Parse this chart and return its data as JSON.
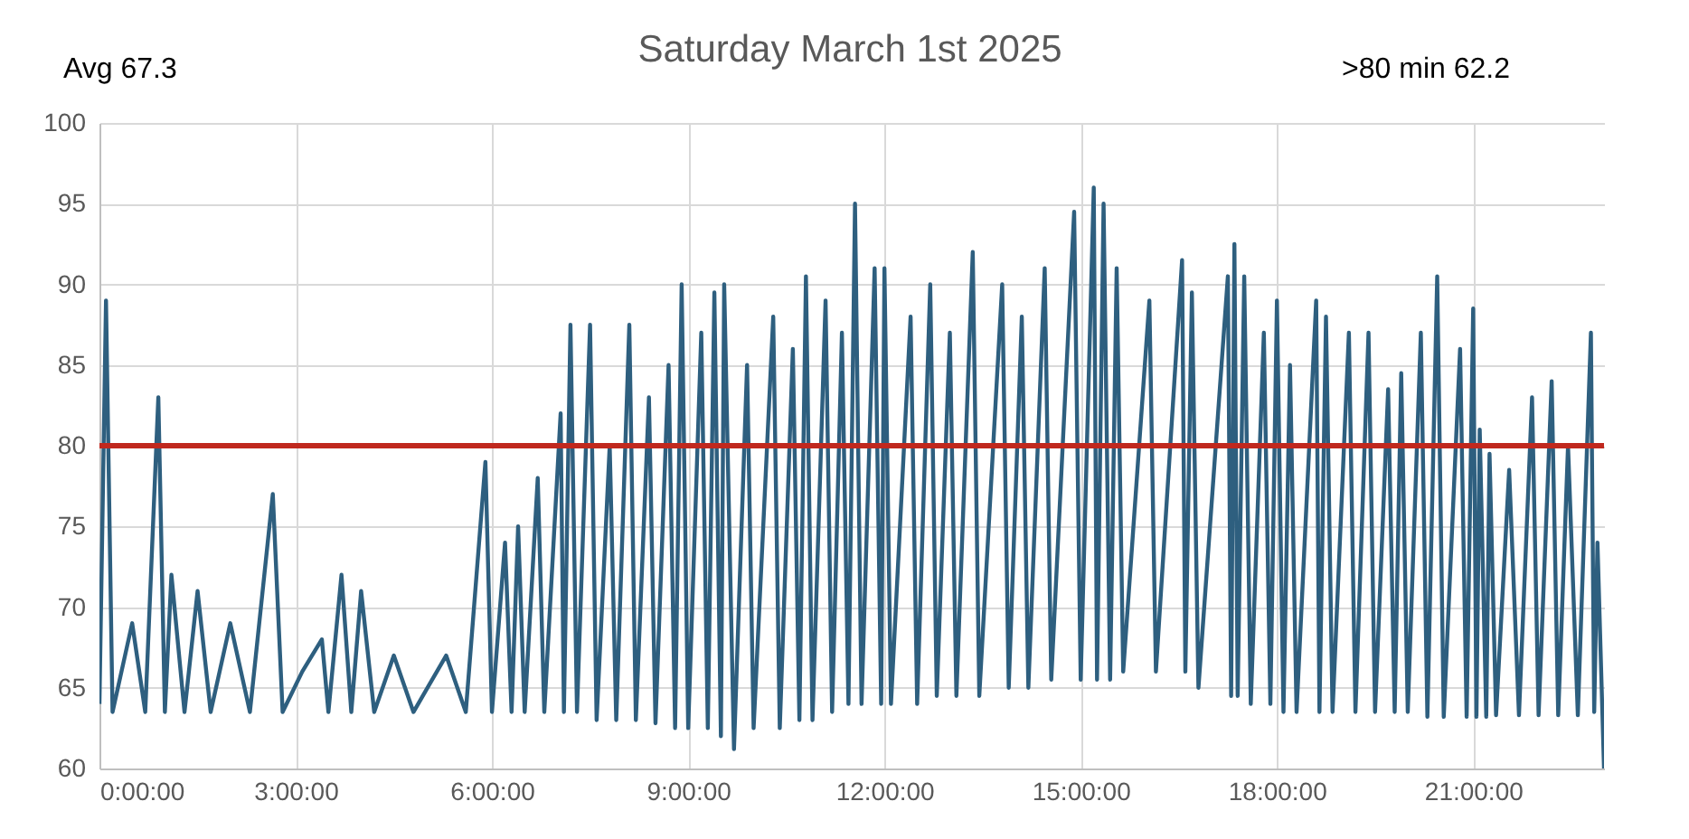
{
  "chart_data": {
    "type": "line",
    "title": "Saturday March 1st 2025",
    "annotations": [
      "Avg  67.3",
      ">80 min 62.2"
    ],
    "x": [
      0,
      0.1,
      0.2,
      0.5,
      0.7,
      0.9,
      1.0,
      1.1,
      1.3,
      1.5,
      1.7,
      2.0,
      2.3,
      2.65,
      2.8,
      3.1,
      3.4,
      3.5,
      3.7,
      3.85,
      4.0,
      4.2,
      4.5,
      4.8,
      5.3,
      5.6,
      5.9,
      6.0,
      6.2,
      6.3,
      6.4,
      6.5,
      6.7,
      6.8,
      7.05,
      7.1,
      7.2,
      7.3,
      7.5,
      7.6,
      7.8,
      7.9,
      8.1,
      8.2,
      8.4,
      8.5,
      8.7,
      8.8,
      8.9,
      9.0,
      9.2,
      9.3,
      9.4,
      9.5,
      9.55,
      9.7,
      9.9,
      10.0,
      10.3,
      10.4,
      10.6,
      10.7,
      10.8,
      10.9,
      11.1,
      11.2,
      11.35,
      11.45,
      11.55,
      11.65,
      11.85,
      11.95,
      12.0,
      12.1,
      12.4,
      12.5,
      12.7,
      12.8,
      13.0,
      13.1,
      13.35,
      13.45,
      13.8,
      13.9,
      14.1,
      14.2,
      14.45,
      14.55,
      14.9,
      15.0,
      15.2,
      15.25,
      15.35,
      15.45,
      15.55,
      15.65,
      16.05,
      16.15,
      16.55,
      16.6,
      16.7,
      16.8,
      17.25,
      17.3,
      17.35,
      17.4,
      17.5,
      17.6,
      17.8,
      17.9,
      18.0,
      18.1,
      18.2,
      18.3,
      18.6,
      18.65,
      18.75,
      18.85,
      19.1,
      19.2,
      19.4,
      19.5,
      19.7,
      19.8,
      19.9,
      20.0,
      20.2,
      20.3,
      20.45,
      20.55,
      20.8,
      20.9,
      21.0,
      21.05,
      21.1,
      21.2,
      21.25,
      21.35,
      21.55,
      21.7,
      21.9,
      22.0,
      22.2,
      22.3,
      22.45,
      22.6,
      22.8,
      22.85,
      22.9,
      23.0
    ],
    "series": [
      {
        "color": "#2e5f7f",
        "values": [
          64,
          89,
          63.5,
          69,
          63.5,
          83,
          63.5,
          72,
          63.5,
          71,
          63.5,
          69,
          63.5,
          77,
          63.5,
          66,
          68,
          63.5,
          72,
          63.5,
          71,
          63.5,
          67,
          63.5,
          67,
          63.5,
          79,
          63.5,
          74,
          63.5,
          75,
          63.5,
          78,
          63.5,
          82,
          63.5,
          87.5,
          63.5,
          87.5,
          63,
          80,
          63,
          87.5,
          63,
          83,
          62.8,
          85,
          62.5,
          90,
          62.5,
          87,
          62.5,
          89.5,
          62,
          90,
          61.2,
          85,
          62.5,
          88,
          62.5,
          86,
          63,
          90.5,
          63,
          89,
          63.5,
          87,
          64,
          95,
          64,
          91,
          64,
          91,
          64,
          88,
          64,
          90,
          64.5,
          87,
          64.5,
          92,
          64.5,
          90,
          65,
          88,
          65,
          91,
          65.5,
          94.5,
          65.5,
          96,
          65.5,
          95,
          65.5,
          91,
          66,
          89,
          66,
          91.5,
          66,
          89.5,
          65,
          90.5,
          64.5,
          92.5,
          64.5,
          90.5,
          64,
          87,
          64,
          89,
          63.5,
          85,
          63.5,
          89,
          63.5,
          88,
          63.5,
          87,
          63.5,
          87,
          63.5,
          83.5,
          63.5,
          84.5,
          63.5,
          87,
          63.2,
          90.5,
          63.2,
          86,
          63.2,
          88.5,
          63.2,
          81,
          63.2,
          79.5,
          63.3,
          78.5,
          63.3,
          83,
          63.3,
          84,
          63.3,
          80,
          63.3,
          87,
          63.5,
          74,
          60
        ]
      }
    ],
    "xlim": [
      0,
      23
    ],
    "xticks": [
      {
        "value": 0,
        "label": "0:00:00"
      },
      {
        "value": 3,
        "label": "3:00:00"
      },
      {
        "value": 6,
        "label": "6:00:00"
      },
      {
        "value": 9,
        "label": "9:00:00"
      },
      {
        "value": 12,
        "label": "12:00:00"
      },
      {
        "value": 15,
        "label": "15:00:00"
      },
      {
        "value": 18,
        "label": "18:00:00"
      },
      {
        "value": 21,
        "label": "21:00:00"
      }
    ],
    "ylim": [
      60,
      100
    ],
    "yticks": [
      60,
      65,
      70,
      75,
      80,
      85,
      90,
      95,
      100
    ],
    "grid": true,
    "ref_lines": [
      {
        "axis": "y",
        "value": 80,
        "color": "#c0281e"
      }
    ]
  }
}
